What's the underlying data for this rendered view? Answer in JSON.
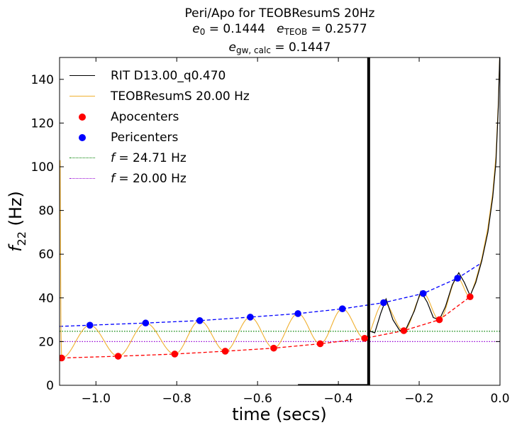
{
  "title": {
    "line1": "Peri/Apo for TEOBResumS 20Hz",
    "e0_symbol": "e",
    "e0_sub": "0",
    "e0_value": " = 0.1444",
    "eteob_symbol": "e",
    "eteob_sub": "TEOB",
    "eteob_value": " = 0.2577",
    "egw_symbol": "e",
    "egw_sub": "gw, calc",
    "egw_value": " = 0.1447"
  },
  "legend": {
    "rit": "RIT D13.00_q0.470",
    "teob": "TEOBResumS 20.00 Hz",
    "apo": "Apocenters",
    "peri": "Pericenters",
    "f1_symbol": "f",
    "f1_value": " = 24.71 Hz",
    "f2_symbol": "f",
    "f2_value": " = 20.00 Hz"
  },
  "colors": {
    "rit": "#000000",
    "teob": "#f0b030",
    "apo": "#ff0000",
    "peri": "#0000ff",
    "f1": "#008000",
    "f2": "#9400d3"
  },
  "chart_data": {
    "type": "line",
    "title": "Peri/Apo for TEOBResumS 20Hz",
    "xlabel": "time (secs)",
    "ylabel_symbol": "f",
    "ylabel_sub": "22",
    "ylabel_unit": " (Hz)",
    "xlim": [
      -1.09,
      0.0
    ],
    "ylim": [
      0,
      150
    ],
    "xticks": [
      -1.0,
      -0.8,
      -0.6,
      -0.4,
      -0.2,
      0.0
    ],
    "xtick_labels": [
      "−1.0",
      "−0.8",
      "−0.6",
      "−0.4",
      "−0.2",
      "0.0"
    ],
    "yticks": [
      0,
      20,
      40,
      60,
      80,
      100,
      120,
      140
    ],
    "ytick_labels": [
      "0",
      "20",
      "40",
      "60",
      "80",
      "100",
      "120",
      "140"
    ],
    "vertical_line_x": -0.325,
    "hlines": [
      {
        "name": "f = 24.71 Hz",
        "y": 24.71,
        "style": "dotted"
      },
      {
        "name": "f = 20.00 Hz",
        "y": 20.0,
        "style": "dotted"
      }
    ],
    "apocenters": {
      "x": [
        -1.085,
        -0.945,
        -0.805,
        -0.68,
        -0.56,
        -0.445,
        -0.335,
        -0.238,
        -0.15,
        -0.074
      ],
      "y": [
        12.5,
        13.3,
        14.3,
        15.6,
        17.0,
        19.0,
        21.5,
        25.0,
        30.0,
        40.5
      ]
    },
    "pericenters": {
      "x": [
        -1.015,
        -0.877,
        -0.743,
        -0.618,
        -0.5,
        -0.39,
        -0.288,
        -0.19,
        -0.105
      ],
      "y": [
        27.5,
        28.5,
        29.6,
        31.2,
        32.8,
        35.0,
        37.8,
        42.0,
        49.0
      ]
    },
    "apo_fit": {
      "x": [
        -1.085,
        -0.074
      ],
      "y_start": 12.5,
      "y_end": 40.5
    },
    "peri_fit": {
      "x": [
        -1.09,
        -0.05
      ],
      "y_start": 27.2,
      "y_end": 55.5
    },
    "series": [
      {
        "name": "RIT D13.00_q0.470",
        "x_start": -0.33,
        "x_end": 0.0
      },
      {
        "name": "TEOBResumS 20.00 Hz",
        "x_start": -1.088,
        "x_end": 0.0
      }
    ]
  }
}
